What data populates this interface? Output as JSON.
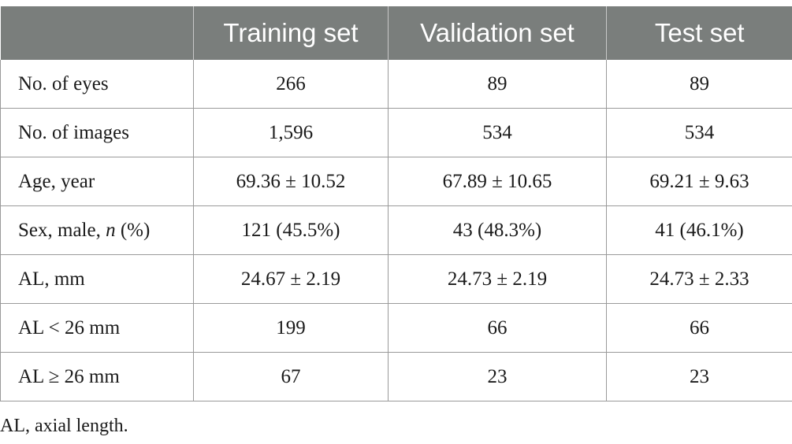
{
  "table": {
    "headers": [
      "",
      "Training set",
      "Validation set",
      "Test set"
    ],
    "rows": [
      {
        "label": "No. of eyes",
        "training": "266",
        "validation": "89",
        "test": "89"
      },
      {
        "label": "No. of images",
        "training": "1,596",
        "validation": "534",
        "test": "534"
      },
      {
        "label": "Age, year",
        "training": "69.36 ± 10.52",
        "validation": "67.89 ± 10.65",
        "test": "69.21 ± 9.63"
      },
      {
        "label_prefix": "Sex, male, ",
        "label_italic": "n",
        "label_suffix": " (%)",
        "training": "121 (45.5%)",
        "validation": "43 (48.3%)",
        "test": "41 (46.1%)"
      },
      {
        "label": "AL, mm",
        "training": "24.67 ± 2.19",
        "validation": "24.73 ± 2.19",
        "test": "24.73 ± 2.33"
      },
      {
        "label": "AL < 26 mm",
        "training": "199",
        "validation": "66",
        "test": "66"
      },
      {
        "label": "AL ≥ 26 mm",
        "training": "67",
        "validation": "23",
        "test": "23"
      }
    ]
  },
  "footnote": "AL, axial length."
}
